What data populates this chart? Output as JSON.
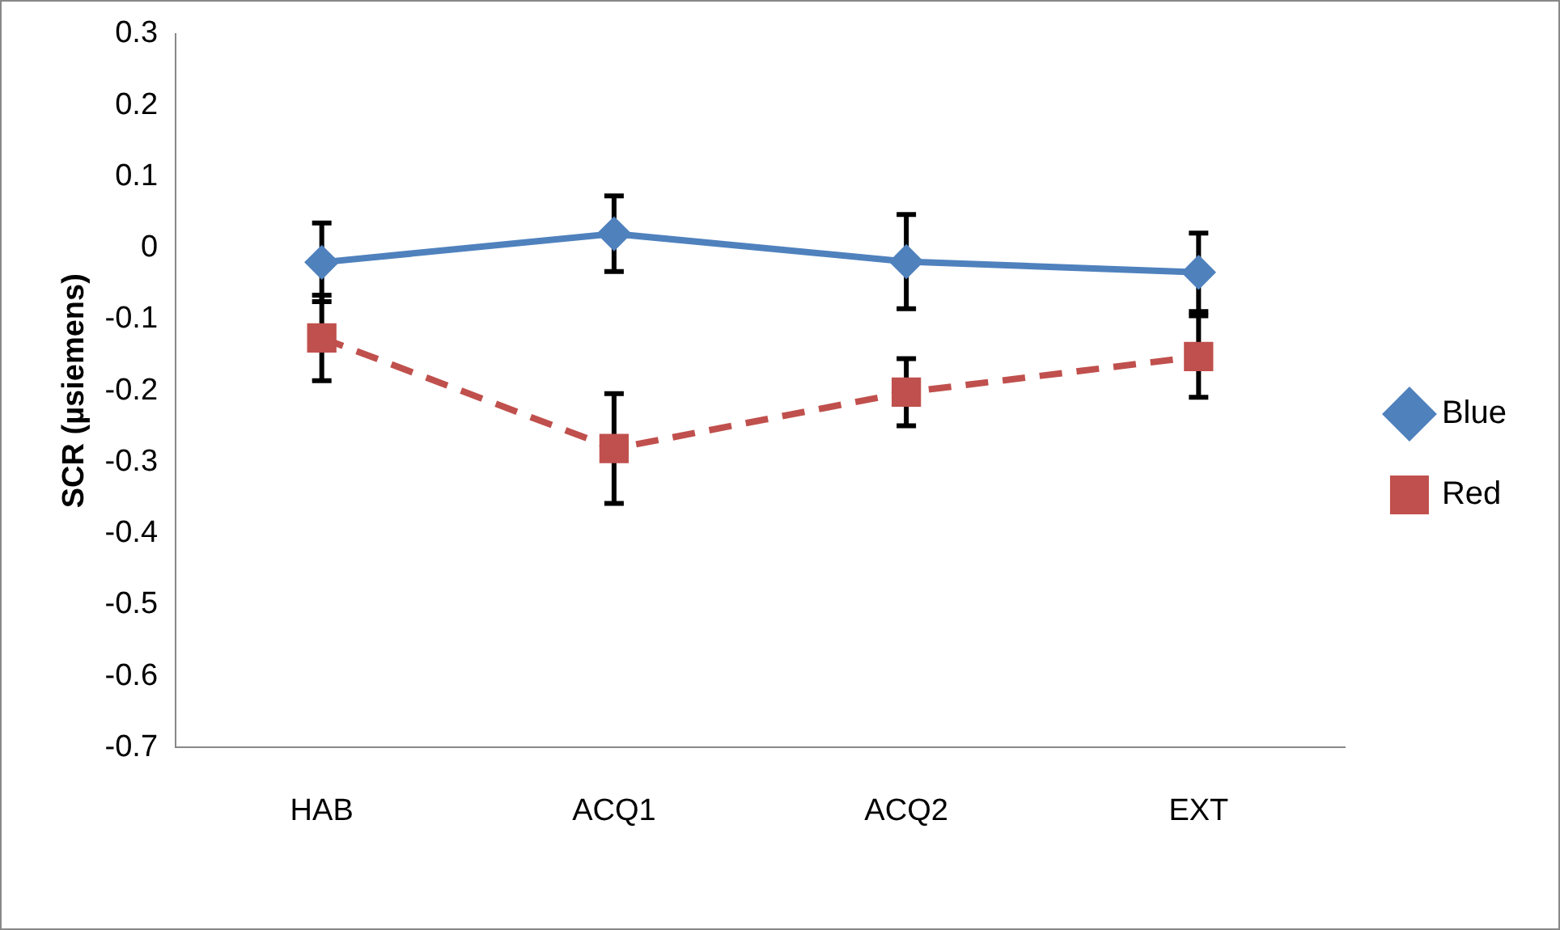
{
  "chart_data": {
    "type": "line",
    "ylabel": "SCR (µsiemens)",
    "categories": [
      "HAB",
      "ACQ1",
      "ACQ2",
      "EXT"
    ],
    "series": [
      {
        "name": "Blue",
        "color": "#4f81bd",
        "values": [
          -0.02,
          0.02,
          -0.019,
          -0.034
        ],
        "errors": [
          0.055,
          0.053,
          0.066,
          0.055
        ],
        "marker": "diamond",
        "line_style": "solid"
      },
      {
        "name": "Red",
        "color": "#c0504d",
        "values": [
          -0.126,
          -0.281,
          -0.202,
          -0.152
        ],
        "errors": [
          0.06,
          0.077,
          0.047,
          0.057
        ],
        "marker": "square",
        "line_style": "dashed"
      }
    ],
    "ylim": [
      -0.7,
      0.3
    ],
    "yticks": [
      -0.7,
      -0.6,
      -0.5,
      -0.4,
      -0.3,
      -0.2,
      -0.1,
      0,
      0.1,
      0.2,
      0.3
    ],
    "grid": false,
    "legend": "right"
  }
}
